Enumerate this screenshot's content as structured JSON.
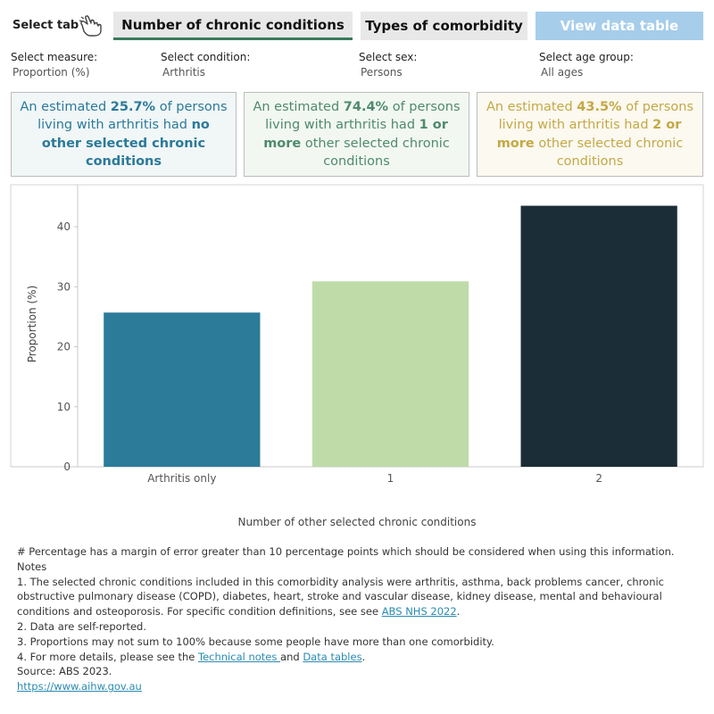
{
  "header": {
    "select_tab_label": "Select tab",
    "tabs": [
      {
        "label": "Number of chronic conditions",
        "active": true
      },
      {
        "label": "Types of comorbidity",
        "active": false
      },
      {
        "label": "View data table",
        "active": false
      }
    ]
  },
  "filters": {
    "measure": {
      "label": "Select measure:",
      "value": "Proportion (%)"
    },
    "condition": {
      "label": "Select condition:",
      "value": "Arthritis"
    },
    "sex": {
      "label": "Select sex:",
      "value": "Persons"
    },
    "age": {
      "label": "Select age group:",
      "value": "All ages"
    }
  },
  "cards": [
    {
      "pre": "An estimated ",
      "value": "25.7%",
      "mid": " of persons living with arthritis had ",
      "emph": "no other selected chronic conditions",
      "post": "",
      "color": "#2b7a99"
    },
    {
      "pre": "An estimated ",
      "value": "74.4%",
      "mid": " of persons living with arthritis had ",
      "emph": "1 or more",
      "post": " other selected chronic conditions",
      "color": "#4f8a6c"
    },
    {
      "pre": "An estimated ",
      "value": "43.5%",
      "mid": " of persons living with arthritis had ",
      "emph": "2 or more",
      "post": " other selected chronic conditions",
      "color": "#c4a846"
    }
  ],
  "chart_data": {
    "type": "bar",
    "categories": [
      "Arthritis only",
      "1",
      "2"
    ],
    "values": [
      25.7,
      30.9,
      43.5
    ],
    "colors": [
      "#2c7b99",
      "#bfdba8",
      "#1b2d36"
    ],
    "xlabel": "Number of other selected chronic conditions",
    "ylabel": "Proportion (%)",
    "yticks": [
      0,
      10,
      20,
      30,
      40
    ],
    "ylim": [
      0,
      47
    ],
    "grid": false
  },
  "notes": {
    "margin_note": "# Percentage has a margin of error greater than 10 percentage points which should be considered when using this information.",
    "notes_heading": "Notes",
    "note1_text": "1. The selected chronic conditions included in this comorbidity analysis were arthritis, asthma, back problems cancer, chronic obstructive pulmonary disease (COPD), diabetes, heart, stroke and vascular disease, kidney disease, mental and behavioural conditions and osteoporosis. For specific condition definitions, see see ",
    "note1_link": "ABS NHS 2022",
    "note1_end": ".",
    "note2": "2. Data are self-reported.",
    "note3": "3. Proportions may not sum to 100% because some people have more than one comorbidity.",
    "note4_text": "4. For more details, please see the ",
    "note4_link1": "Technical notes ",
    "note4_and": "and ",
    "note4_link2": "Data tables",
    "note4_end": ".",
    "source": "Source: ABS 2023.",
    "url": "https://www.aihw.gov.au"
  }
}
